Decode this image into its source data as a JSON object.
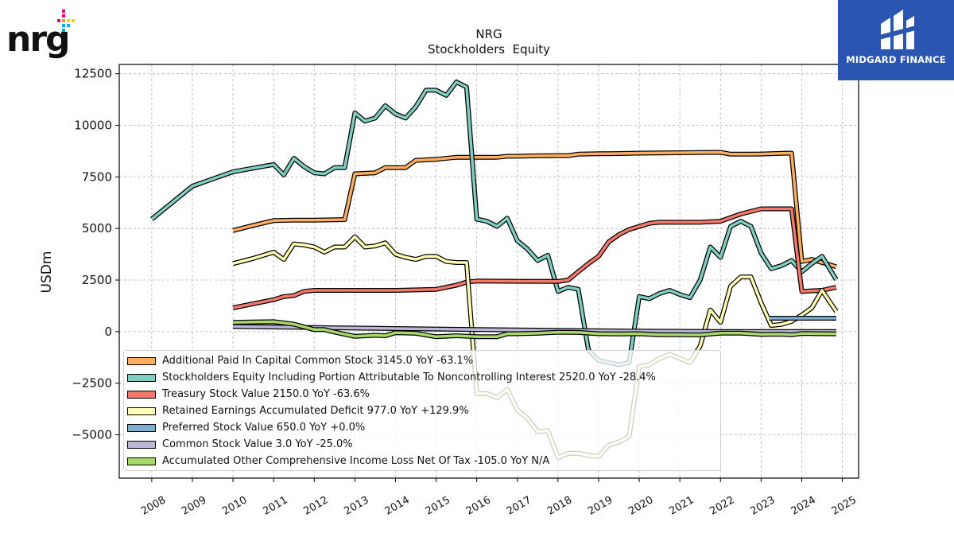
{
  "brand": {
    "company_logo_text": "nrg",
    "watermark_text": "MIDGARD FINANCE"
  },
  "colors": {
    "apic": "#fdae61",
    "equity": "#80cdc1",
    "treasury": "#f4796a",
    "retained": "#ffffb3",
    "preferred": "#7fafd0",
    "common": "#bcb7d6",
    "aoci": "#a6d96a"
  },
  "chart_data": {
    "type": "line",
    "title": "NRG",
    "subtitle": "Stockholders  Equity",
    "ylabel": "USDm",
    "xlabel": "",
    "xlim": [
      2007.2,
      2025.4
    ],
    "ylim": [
      -7100,
      12950
    ],
    "yticks": [
      -5000,
      -2500,
      0,
      2500,
      5000,
      7500,
      10000,
      12500
    ],
    "ytick_labels": [
      "−5000",
      "−2500",
      "0",
      "2500",
      "5000",
      "7500",
      "10000",
      "12500"
    ],
    "xticks": [
      2008,
      2009,
      2010,
      2011,
      2012,
      2013,
      2014,
      2015,
      2016,
      2017,
      2018,
      2019,
      2020,
      2021,
      2022,
      2023,
      2024,
      2025
    ],
    "xtick_labels": [
      "2008",
      "2009",
      "2010",
      "2011",
      "2012",
      "2013",
      "2014",
      "2015",
      "2016",
      "2017",
      "2018",
      "2019",
      "2020",
      "2021",
      "2022",
      "2023",
      "2024",
      "2025"
    ],
    "grid": true,
    "legend_position": "lower-left",
    "series": [
      {
        "name": "Additional Paid In Capital Common Stock",
        "legend": "Additional Paid In Capital Common Stock  3145.0 YoY -63.1%",
        "color_key": "apic",
        "points": [
          [
            2010.0,
            4900
          ],
          [
            2010.5,
            5150
          ],
          [
            2011.0,
            5380
          ],
          [
            2011.5,
            5400
          ],
          [
            2012.0,
            5400
          ],
          [
            2012.5,
            5420
          ],
          [
            2012.75,
            5430
          ],
          [
            2013.0,
            7650
          ],
          [
            2013.5,
            7700
          ],
          [
            2013.75,
            7950
          ],
          [
            2014.0,
            7950
          ],
          [
            2014.25,
            7950
          ],
          [
            2014.5,
            8300
          ],
          [
            2015.0,
            8350
          ],
          [
            2015.5,
            8450
          ],
          [
            2016.0,
            8450
          ],
          [
            2016.5,
            8450
          ],
          [
            2016.75,
            8500
          ],
          [
            2017.0,
            8500
          ],
          [
            2017.5,
            8520
          ],
          [
            2018.0,
            8530
          ],
          [
            2018.25,
            8530
          ],
          [
            2018.5,
            8600
          ],
          [
            2019.0,
            8620
          ],
          [
            2019.5,
            8630
          ],
          [
            2020.0,
            8650
          ],
          [
            2020.5,
            8660
          ],
          [
            2021.0,
            8670
          ],
          [
            2021.5,
            8680
          ],
          [
            2022.0,
            8690
          ],
          [
            2022.25,
            8600
          ],
          [
            2022.75,
            8600
          ],
          [
            2023.0,
            8610
          ],
          [
            2023.5,
            8640
          ],
          [
            2023.75,
            8650
          ],
          [
            2024.0,
            3400
          ],
          [
            2024.25,
            3500
          ],
          [
            2024.5,
            3350
          ],
          [
            2024.85,
            3145
          ]
        ]
      },
      {
        "name": "Stockholders Equity Including Portion Attributable To Noncontrolling Interest",
        "legend": "Stockholders Equity Including Portion Attributable To Noncontrolling Interest  2520.0 YoY -28.4%",
        "color_key": "equity",
        "points": [
          [
            2008.0,
            5450
          ],
          [
            2009.0,
            7050
          ],
          [
            2010.0,
            7750
          ],
          [
            2011.0,
            8100
          ],
          [
            2011.25,
            7600
          ],
          [
            2011.5,
            8400
          ],
          [
            2011.75,
            8000
          ],
          [
            2012.0,
            7700
          ],
          [
            2012.25,
            7650
          ],
          [
            2012.5,
            7950
          ],
          [
            2012.75,
            7950
          ],
          [
            2013.0,
            10600
          ],
          [
            2013.25,
            10200
          ],
          [
            2013.5,
            10350
          ],
          [
            2013.75,
            10950
          ],
          [
            2014.0,
            10550
          ],
          [
            2014.25,
            10350
          ],
          [
            2014.5,
            10900
          ],
          [
            2014.75,
            11700
          ],
          [
            2015.0,
            11700
          ],
          [
            2015.25,
            11450
          ],
          [
            2015.5,
            12100
          ],
          [
            2015.75,
            11850
          ],
          [
            2016.0,
            5450
          ],
          [
            2016.25,
            5350
          ],
          [
            2016.5,
            5100
          ],
          [
            2016.75,
            5500
          ],
          [
            2017.0,
            4400
          ],
          [
            2017.25,
            4000
          ],
          [
            2017.5,
            3450
          ],
          [
            2017.75,
            3700
          ],
          [
            2018.0,
            1950
          ],
          [
            2018.25,
            2150
          ],
          [
            2018.5,
            2050
          ],
          [
            2018.75,
            -900
          ],
          [
            2019.0,
            -1400
          ],
          [
            2019.5,
            -1600
          ],
          [
            2019.75,
            -1500
          ],
          [
            2020.0,
            1700
          ],
          [
            2020.25,
            1600
          ],
          [
            2020.5,
            1850
          ],
          [
            2020.75,
            2000
          ],
          [
            2021.0,
            1800
          ],
          [
            2021.25,
            1650
          ],
          [
            2021.5,
            2500
          ],
          [
            2021.75,
            4100
          ],
          [
            2022.0,
            3600
          ],
          [
            2022.25,
            5100
          ],
          [
            2022.5,
            5350
          ],
          [
            2022.75,
            5100
          ],
          [
            2023.0,
            3800
          ],
          [
            2023.25,
            3050
          ],
          [
            2023.5,
            3200
          ],
          [
            2023.75,
            3450
          ],
          [
            2024.0,
            2900
          ],
          [
            2024.25,
            3300
          ],
          [
            2024.5,
            3650
          ],
          [
            2024.85,
            2520
          ]
        ]
      },
      {
        "name": "Treasury Stock Value",
        "legend": "Treasury Stock Value  2150.0 YoY -63.6%",
        "color_key": "treasury",
        "points": [
          [
            2010.0,
            1150
          ],
          [
            2010.5,
            1350
          ],
          [
            2011.0,
            1550
          ],
          [
            2011.25,
            1700
          ],
          [
            2011.5,
            1750
          ],
          [
            2011.75,
            1950
          ],
          [
            2012.0,
            2000
          ],
          [
            2013.0,
            2000
          ],
          [
            2014.0,
            2000
          ],
          [
            2015.0,
            2050
          ],
          [
            2015.5,
            2250
          ],
          [
            2015.75,
            2400
          ],
          [
            2016.0,
            2450
          ],
          [
            2017.0,
            2440
          ],
          [
            2018.0,
            2430
          ],
          [
            2018.25,
            2500
          ],
          [
            2018.5,
            2900
          ],
          [
            2018.75,
            3300
          ],
          [
            2019.0,
            3650
          ],
          [
            2019.25,
            4350
          ],
          [
            2019.5,
            4700
          ],
          [
            2019.75,
            4950
          ],
          [
            2020.0,
            5100
          ],
          [
            2020.25,
            5250
          ],
          [
            2020.5,
            5300
          ],
          [
            2021.0,
            5300
          ],
          [
            2021.5,
            5300
          ],
          [
            2022.0,
            5350
          ],
          [
            2022.5,
            5700
          ],
          [
            2023.0,
            5950
          ],
          [
            2023.5,
            5950
          ],
          [
            2023.75,
            5950
          ],
          [
            2024.0,
            1950
          ],
          [
            2024.5,
            2000
          ],
          [
            2024.85,
            2150
          ]
        ]
      },
      {
        "name": "Retained Earnings Accumulated Deficit",
        "legend": "Retained Earnings Accumulated Deficit  977.0 YoY +129.9%",
        "color_key": "retained",
        "points": [
          [
            2010.0,
            3300
          ],
          [
            2010.5,
            3550
          ],
          [
            2011.0,
            3850
          ],
          [
            2011.25,
            3500
          ],
          [
            2011.5,
            4250
          ],
          [
            2011.75,
            4200
          ],
          [
            2012.0,
            4100
          ],
          [
            2012.25,
            3850
          ],
          [
            2012.5,
            4100
          ],
          [
            2012.75,
            4100
          ],
          [
            2013.0,
            4600
          ],
          [
            2013.25,
            4100
          ],
          [
            2013.5,
            4150
          ],
          [
            2013.75,
            4300
          ],
          [
            2014.0,
            3750
          ],
          [
            2014.25,
            3600
          ],
          [
            2014.5,
            3500
          ],
          [
            2014.75,
            3650
          ],
          [
            2015.0,
            3650
          ],
          [
            2015.25,
            3400
          ],
          [
            2015.5,
            3350
          ],
          [
            2015.75,
            3350
          ],
          [
            2016.0,
            -3000
          ],
          [
            2016.25,
            -3000
          ],
          [
            2016.5,
            -3200
          ],
          [
            2016.75,
            -2800
          ],
          [
            2017.0,
            -3800
          ],
          [
            2017.25,
            -4200
          ],
          [
            2017.5,
            -4850
          ],
          [
            2017.75,
            -4800
          ],
          [
            2018.0,
            -6100
          ],
          [
            2018.25,
            -5900
          ],
          [
            2018.5,
            -5900
          ],
          [
            2018.75,
            -6000
          ],
          [
            2019.0,
            -6050
          ],
          [
            2019.25,
            -5500
          ],
          [
            2019.5,
            -5350
          ],
          [
            2019.75,
            -5100
          ],
          [
            2020.0,
            -1700
          ],
          [
            2020.25,
            -1600
          ],
          [
            2020.5,
            -1300
          ],
          [
            2020.75,
            -1100
          ],
          [
            2021.0,
            -1300
          ],
          [
            2021.25,
            -1500
          ],
          [
            2021.5,
            -700
          ],
          [
            2021.75,
            1050
          ],
          [
            2022.0,
            450
          ],
          [
            2022.25,
            2200
          ],
          [
            2022.5,
            2650
          ],
          [
            2022.75,
            2650
          ],
          [
            2023.0,
            1400
          ],
          [
            2023.25,
            300
          ],
          [
            2023.5,
            350
          ],
          [
            2023.75,
            500
          ],
          [
            2024.0,
            800
          ],
          [
            2024.25,
            1150
          ],
          [
            2024.5,
            2000
          ],
          [
            2024.85,
            977
          ]
        ]
      },
      {
        "name": "Preferred Stock Value",
        "legend": "Preferred Stock Value  650.0 YoY +0.0%",
        "color_key": "preferred",
        "points": [
          [
            2023.2,
            650
          ],
          [
            2024.85,
            650
          ]
        ]
      },
      {
        "name": "Common Stock Value",
        "legend": "Common Stock Value  3.0 YoY -25.0%",
        "color_key": "common",
        "points": [
          [
            2010.0,
            250
          ],
          [
            2012.0,
            200
          ],
          [
            2014.0,
            150
          ],
          [
            2016.0,
            100
          ],
          [
            2018.0,
            60
          ],
          [
            2020.0,
            20
          ],
          [
            2022.0,
            8
          ],
          [
            2024.85,
            3
          ]
        ]
      },
      {
        "name": "Accumulated Other Comprehensive Income Loss Net Of Tax",
        "legend": "Accumulated Other Comprehensive Income Loss Net Of Tax  -105.0 YoY N/A",
        "color_key": "aoci",
        "points": [
          [
            2010.0,
            450
          ],
          [
            2010.5,
            470
          ],
          [
            2011.0,
            480
          ],
          [
            2011.5,
            360
          ],
          [
            2012.0,
            100
          ],
          [
            2012.25,
            100
          ],
          [
            2012.5,
            -20
          ],
          [
            2013.0,
            -230
          ],
          [
            2013.5,
            -180
          ],
          [
            2013.75,
            -200
          ],
          [
            2014.0,
            -50
          ],
          [
            2014.5,
            -80
          ],
          [
            2015.0,
            -250
          ],
          [
            2015.5,
            -200
          ],
          [
            2016.0,
            -250
          ],
          [
            2016.5,
            -250
          ],
          [
            2016.75,
            -100
          ],
          [
            2017.0,
            -100
          ],
          [
            2017.5,
            -80
          ],
          [
            2018.0,
            -30
          ],
          [
            2018.5,
            -40
          ],
          [
            2019.0,
            -100
          ],
          [
            2019.5,
            -110
          ],
          [
            2020.0,
            -100
          ],
          [
            2020.5,
            -150
          ],
          [
            2021.0,
            -150
          ],
          [
            2021.5,
            -160
          ],
          [
            2022.0,
            -70
          ],
          [
            2022.5,
            -70
          ],
          [
            2023.0,
            -130
          ],
          [
            2023.5,
            -120
          ],
          [
            2023.75,
            -150
          ],
          [
            2024.0,
            -90
          ],
          [
            2024.5,
            -100
          ],
          [
            2024.85,
            -105
          ]
        ]
      }
    ]
  }
}
